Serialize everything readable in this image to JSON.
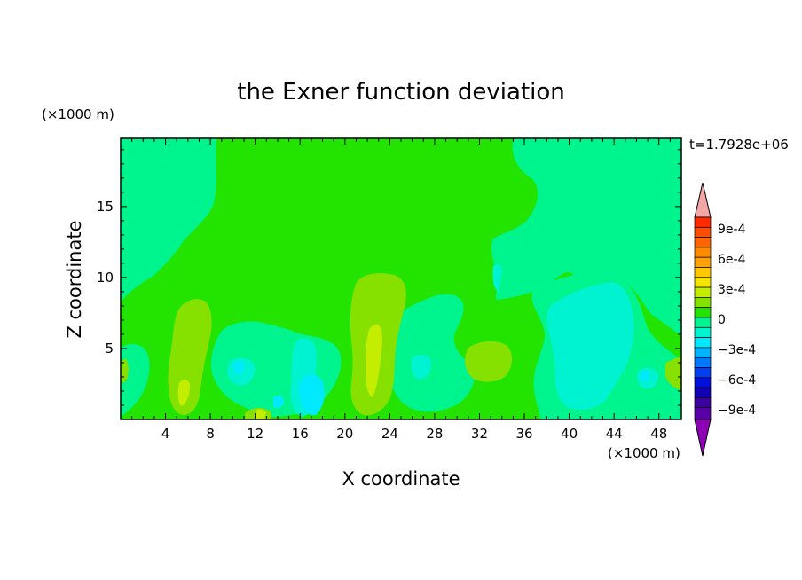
{
  "chart_data": {
    "type": "heatmap",
    "title": "the Exner function deviation",
    "xlabel": "X coordinate",
    "ylabel": "Z coordinate",
    "x_unit": "(×1000 m)",
    "z_unit": "(×1000 m)",
    "time_label": "t=1.7928e+06",
    "xlim": [
      0,
      50
    ],
    "ylim": [
      0,
      19.8
    ],
    "x_ticks": [
      4,
      8,
      12,
      16,
      20,
      24,
      28,
      32,
      36,
      40,
      44,
      48
    ],
    "y_ticks": [
      5,
      10,
      15
    ],
    "colorbar": {
      "ticks": [
        "9e-4",
        "6e-4",
        "3e-4",
        "0",
        "−3e-4",
        "−6e-4",
        "−9e-4"
      ],
      "levels": [
        -0.0009,
        -0.0006,
        -0.0003,
        0,
        0.0003,
        0.0006,
        0.0009
      ],
      "over_color": "#f4a7a7",
      "under_color": "#8e00b5"
    },
    "field_regions": [
      {
        "level": "-1e-4",
        "color": "#00f48e",
        "description": "background near-zero negative deviation"
      },
      {
        "level": "1e-4",
        "color": "#23e400",
        "description": "upper central plume and scattered lower patches"
      },
      {
        "level": "2e-4",
        "color": "#86e000",
        "description": "lower-level positive cells"
      },
      {
        "level": "3e-4",
        "color": "#c4ee00",
        "description": "small high cells near surface"
      },
      {
        "level": "-2e-4",
        "color": "#00f3d0",
        "description": "weak negative pockets"
      },
      {
        "level": "-3e-4",
        "color": "#00eaff",
        "description": "strongest negative pockets near surface"
      }
    ]
  }
}
